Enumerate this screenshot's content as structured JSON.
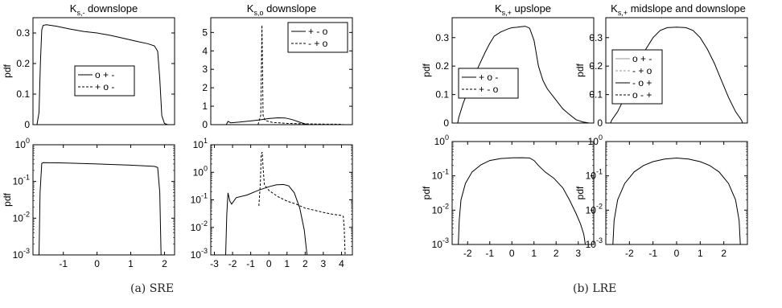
{
  "captions": {
    "a": "(a)  SRE",
    "b": "(b)  LRE"
  },
  "chart_data": [
    {
      "id": "sre-ks-minus-linear",
      "type": "line",
      "title": "K_{s,-} downslope",
      "ylabel": "pdf",
      "scale": "linear",
      "xlim": [
        -1.9,
        2.3
      ],
      "ylim": [
        0,
        0.35
      ],
      "xticks": [],
      "yticks": [
        0,
        0.1,
        0.2,
        0.3
      ],
      "ytick_labels": [
        "0",
        "0.1",
        "0.2",
        "0.3"
      ],
      "legend": {
        "position": "center",
        "entries": [
          {
            "label": "o + -",
            "style": "solid"
          },
          {
            "label": "+ o -",
            "style": "dashed"
          }
        ]
      },
      "series": [
        {
          "style": "solid",
          "points": [
            [
              -1.9,
              0
            ],
            [
              -1.78,
              0
            ],
            [
              -1.72,
              0.04
            ],
            [
              -1.68,
              0.2
            ],
            [
              -1.64,
              0.31
            ],
            [
              -1.6,
              0.325
            ],
            [
              -1.5,
              0.327
            ],
            [
              -1.2,
              0.322
            ],
            [
              -0.8,
              0.313
            ],
            [
              -0.4,
              0.305
            ],
            [
              0,
              0.3
            ],
            [
              0.4,
              0.292
            ],
            [
              0.8,
              0.282
            ],
            [
              1.2,
              0.272
            ],
            [
              1.5,
              0.265
            ],
            [
              1.7,
              0.258
            ],
            [
              1.8,
              0.24
            ],
            [
              1.86,
              0.15
            ],
            [
              1.92,
              0.03
            ],
            [
              2.0,
              0.004
            ],
            [
              2.1,
              0
            ],
            [
              2.3,
              0
            ]
          ]
        }
      ]
    },
    {
      "id": "sre-ks-o-linear",
      "type": "line",
      "title": "K_{s,o} downslope",
      "scale": "linear",
      "xlim": [
        -3.2,
        4.6
      ],
      "ylim": [
        0,
        5.8
      ],
      "xticks": [],
      "yticks": [
        0,
        1,
        2,
        3,
        4,
        5
      ],
      "ytick_labels": [
        "0",
        "1",
        "2",
        "3",
        "4",
        "5"
      ],
      "legend": {
        "position": "top-right",
        "entries": [
          {
            "label": "+ - o",
            "style": "solid"
          },
          {
            "label": "- + o",
            "style": "dashed"
          }
        ]
      },
      "series": [
        {
          "style": "solid",
          "points": [
            [
              -2.35,
              0
            ],
            [
              -2.25,
              0.18
            ],
            [
              -2.1,
              0.1
            ],
            [
              -1.6,
              0.14
            ],
            [
              -1,
              0.2
            ],
            [
              -0.4,
              0.27
            ],
            [
              0,
              0.33
            ],
            [
              0.5,
              0.37
            ],
            [
              0.9,
              0.36
            ],
            [
              1.3,
              0.27
            ],
            [
              1.7,
              0.13
            ],
            [
              2.0,
              0.04
            ],
            [
              2.2,
              0
            ]
          ]
        },
        {
          "style": "dashed",
          "points": [
            [
              -0.6,
              0
            ],
            [
              -0.45,
              0.5
            ],
            [
              -0.38,
              5.4
            ],
            [
              -0.32,
              0.5
            ],
            [
              -0.2,
              0.22
            ],
            [
              0.2,
              0.12
            ],
            [
              1,
              0.07
            ],
            [
              2,
              0.045
            ],
            [
              3,
              0.03
            ],
            [
              4,
              0.02
            ],
            [
              4.15,
              0
            ]
          ]
        }
      ]
    },
    {
      "id": "sre-ks-minus-log",
      "type": "line",
      "ylabel": "pdf",
      "scale": "log",
      "xlim": [
        -1.9,
        2.3
      ],
      "ylim": [
        0.001,
        1
      ],
      "xticks": [
        -1,
        0,
        1,
        2
      ],
      "xtick_labels": [
        "-1",
        "0",
        "1",
        "2"
      ],
      "yticks": [
        0.001,
        0.01,
        0.1,
        1
      ],
      "ytick_labels": [
        "10^-3",
        "10^-2",
        "10^-1",
        "10^0"
      ],
      "series": [
        {
          "style": "solid",
          "points": [
            [
              -1.72,
              0.001
            ],
            [
              -1.69,
              0.05
            ],
            [
              -1.64,
              0.31
            ],
            [
              -1.6,
              0.325
            ],
            [
              -1,
              0.32
            ],
            [
              0,
              0.3
            ],
            [
              1,
              0.278
            ],
            [
              1.7,
              0.258
            ],
            [
              1.8,
              0.24
            ],
            [
              1.86,
              0.05
            ],
            [
              1.9,
              0.001
            ]
          ]
        }
      ]
    },
    {
      "id": "sre-ks-o-log",
      "type": "line",
      "scale": "log",
      "xlim": [
        -3.2,
        4.6
      ],
      "ylim": [
        0.001,
        10
      ],
      "xticks": [
        -3,
        -2,
        -1,
        0,
        1,
        2,
        3,
        4
      ],
      "xtick_labels": [
        "-3",
        "-2",
        "-1",
        "0",
        "1",
        "2",
        "3",
        "4"
      ],
      "yticks": [
        0.001,
        0.01,
        0.1,
        1,
        10
      ],
      "ytick_labels": [
        "10^-3",
        "10^-2",
        "10^-1",
        "10^0",
        "10^1"
      ],
      "series": [
        {
          "style": "solid",
          "points": [
            [
              -2.38,
              0.001
            ],
            [
              -2.32,
              0.03
            ],
            [
              -2.25,
              0.18
            ],
            [
              -2.15,
              0.09
            ],
            [
              -2.05,
              0.07
            ],
            [
              -1.8,
              0.12
            ],
            [
              -1.2,
              0.15
            ],
            [
              -0.6,
              0.22
            ],
            [
              0,
              0.3
            ],
            [
              0.4,
              0.35
            ],
            [
              0.8,
              0.36
            ],
            [
              1.1,
              0.32
            ],
            [
              1.4,
              0.18
            ],
            [
              1.7,
              0.05
            ],
            [
              1.95,
              0.008
            ],
            [
              2.1,
              0.001
            ]
          ]
        },
        {
          "style": "dashed",
          "points": [
            [
              -0.55,
              0.06
            ],
            [
              -0.47,
              0.4
            ],
            [
              -0.42,
              4.5
            ],
            [
              -0.37,
              5.4
            ],
            [
              -0.32,
              1.5
            ],
            [
              -0.25,
              0.35
            ],
            [
              0,
              0.22
            ],
            [
              0.5,
              0.13
            ],
            [
              1,
              0.09
            ],
            [
              1.5,
              0.07
            ],
            [
              2,
              0.05
            ],
            [
              2.5,
              0.042
            ],
            [
              3,
              0.035
            ],
            [
              3.5,
              0.03
            ],
            [
              4,
              0.027
            ],
            [
              4.1,
              0.025
            ],
            [
              4.15,
              0.01
            ],
            [
              4.2,
              0.001
            ]
          ]
        }
      ]
    },
    {
      "id": "lre-ks-plus-up-linear",
      "type": "line",
      "title": "K_{s,+} upslope",
      "ylabel": "pdf",
      "scale": "linear",
      "xlim": [
        -2.7,
        3.7
      ],
      "ylim": [
        0,
        0.37
      ],
      "xticks": [],
      "yticks": [
        0,
        0.1,
        0.2,
        0.3
      ],
      "ytick_labels": [
        "0",
        "0.1",
        "0.2",
        "0.3"
      ],
      "legend": {
        "position": "center-left",
        "entries": [
          {
            "label": "+ o -",
            "style": "solid"
          },
          {
            "label": "+ - o",
            "style": "dashed"
          }
        ]
      },
      "series": [
        {
          "style": "solid",
          "points": [
            [
              -2.45,
              0
            ],
            [
              -2.4,
              0.02
            ],
            [
              -2.2,
              0.07
            ],
            [
              -2.0,
              0.11
            ],
            [
              -1.8,
              0.15
            ],
            [
              -1.5,
              0.2
            ],
            [
              -1.2,
              0.25
            ],
            [
              -1,
              0.28
            ],
            [
              -0.8,
              0.305
            ],
            [
              -0.5,
              0.32
            ],
            [
              -0.2,
              0.33
            ],
            [
              0,
              0.335
            ],
            [
              0.2,
              0.336
            ],
            [
              0.4,
              0.338
            ],
            [
              0.6,
              0.34
            ],
            [
              0.8,
              0.333
            ],
            [
              1,
              0.29
            ],
            [
              1.2,
              0.2
            ],
            [
              1.4,
              0.15
            ],
            [
              1.6,
              0.12
            ],
            [
              1.9,
              0.09
            ],
            [
              2.1,
              0.07
            ],
            [
              2.3,
              0.05
            ],
            [
              2.6,
              0.03
            ],
            [
              2.9,
              0.012
            ],
            [
              3.2,
              0.004
            ],
            [
              3.5,
              0
            ]
          ]
        }
      ]
    },
    {
      "id": "lre-ks-plus-mid-linear",
      "type": "line",
      "title": "K_{s,+} midslope and downslope",
      "ylabel": "pdf",
      "scale": "linear",
      "xlim": [
        -3.0,
        3.0
      ],
      "ylim": [
        0,
        0.37
      ],
      "xticks": [],
      "yticks": [
        0,
        0.1,
        0.2,
        0.3
      ],
      "ytick_labels": [
        "0",
        "0.1",
        "0.2",
        "0.3"
      ],
      "legend": {
        "position": "center-left",
        "entries": [
          {
            "label": "o + -",
            "style": "solid-gray"
          },
          {
            "label": "- + o",
            "style": "dashed-gray"
          },
          {
            "label": "- o +",
            "style": "solid"
          },
          {
            "label": "o - +",
            "style": "dashed"
          }
        ]
      },
      "series": [
        {
          "style": "solid",
          "points": [
            [
              -2.8,
              0
            ],
            [
              -2.75,
              0.01
            ],
            [
              -2.5,
              0.04
            ],
            [
              -2.2,
              0.09
            ],
            [
              -1.9,
              0.15
            ],
            [
              -1.6,
              0.21
            ],
            [
              -1.3,
              0.26
            ],
            [
              -1.0,
              0.3
            ],
            [
              -0.7,
              0.325
            ],
            [
              -0.4,
              0.335
            ],
            [
              0,
              0.337
            ],
            [
              0.4,
              0.335
            ],
            [
              0.7,
              0.325
            ],
            [
              1.0,
              0.3
            ],
            [
              1.3,
              0.26
            ],
            [
              1.6,
              0.21
            ],
            [
              1.9,
              0.15
            ],
            [
              2.2,
              0.09
            ],
            [
              2.5,
              0.04
            ],
            [
              2.75,
              0.01
            ],
            [
              2.8,
              0
            ]
          ]
        }
      ]
    },
    {
      "id": "lre-ks-plus-up-log",
      "type": "line",
      "ylabel": "pdf",
      "scale": "log",
      "xlim": [
        -2.7,
        3.7
      ],
      "ylim": [
        0.001,
        1
      ],
      "xticks": [
        -2,
        -1,
        0,
        1,
        2,
        3
      ],
      "xtick_labels": [
        "-2",
        "-1",
        "0",
        "1",
        "2",
        "3"
      ],
      "yticks": [
        0.001,
        0.01,
        0.1,
        1
      ],
      "ytick_labels": [
        "10^-3",
        "10^-2",
        "10^-1",
        "10^0"
      ],
      "series": [
        {
          "style": "solid",
          "points": [
            [
              -2.42,
              0.001
            ],
            [
              -2.38,
              0.005
            ],
            [
              -2.3,
              0.02
            ],
            [
              -2.1,
              0.06
            ],
            [
              -1.8,
              0.13
            ],
            [
              -1.4,
              0.21
            ],
            [
              -1,
              0.28
            ],
            [
              -0.5,
              0.32
            ],
            [
              0,
              0.335
            ],
            [
              0.5,
              0.338
            ],
            [
              0.8,
              0.33
            ],
            [
              1,
              0.28
            ],
            [
              1.2,
              0.2
            ],
            [
              1.5,
              0.13
            ],
            [
              1.9,
              0.085
            ],
            [
              2.3,
              0.045
            ],
            [
              2.6,
              0.02
            ],
            [
              2.9,
              0.008
            ],
            [
              3.1,
              0.004
            ],
            [
              3.25,
              0.002
            ],
            [
              3.32,
              0.001
            ]
          ]
        }
      ]
    },
    {
      "id": "lre-ks-plus-mid-log",
      "type": "line",
      "ylabel": "pdf",
      "scale": "log",
      "xlim": [
        -3.0,
        3.0
      ],
      "ylim": [
        0.001,
        1
      ],
      "xticks": [
        -2,
        -1,
        0,
        1,
        2
      ],
      "xtick_labels": [
        "-2",
        "-1",
        "0",
        "1",
        "2"
      ],
      "yticks": [
        0.001,
        0.01,
        0.1,
        1
      ],
      "ytick_labels": [
        "10^-3",
        "10^-2",
        "10^-1",
        "10^0"
      ],
      "series": [
        {
          "style": "solid",
          "points": [
            [
              -2.7,
              0.001
            ],
            [
              -2.65,
              0.005
            ],
            [
              -2.5,
              0.02
            ],
            [
              -2.2,
              0.06
            ],
            [
              -1.8,
              0.13
            ],
            [
              -1.4,
              0.2
            ],
            [
              -1.0,
              0.26
            ],
            [
              -0.5,
              0.31
            ],
            [
              0,
              0.33
            ],
            [
              0.5,
              0.31
            ],
            [
              1.0,
              0.26
            ],
            [
              1.4,
              0.2
            ],
            [
              1.8,
              0.13
            ],
            [
              2.2,
              0.06
            ],
            [
              2.5,
              0.02
            ],
            [
              2.65,
              0.005
            ],
            [
              2.7,
              0.001
            ]
          ]
        }
      ]
    }
  ]
}
